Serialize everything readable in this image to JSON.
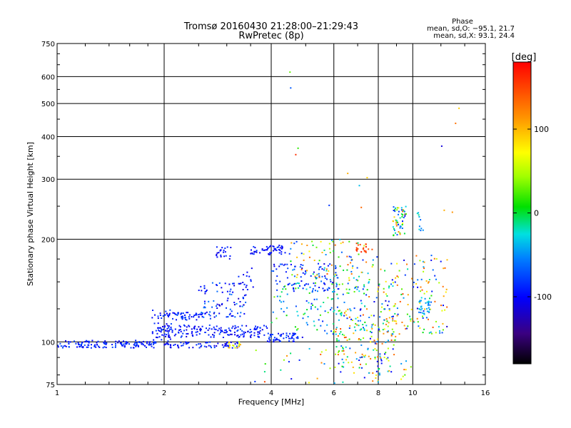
{
  "chart_data": {
    "type": "scatter",
    "title": "Tromsø 20160430 21:28:00–21:29:43",
    "subtitle": "RwPretec (8p)",
    "xlabel": "Frequency [MHz]",
    "ylabel": "Stationary phase Virtual Height [km]",
    "x_scale": "log",
    "y_scale": "log",
    "xlim": [
      1,
      16
    ],
    "ylim": [
      75,
      750
    ],
    "x_ticks": [
      1,
      2,
      4,
      6,
      8,
      10,
      16
    ],
    "y_ticks": [
      75,
      100,
      200,
      300,
      400,
      500,
      600,
      750
    ],
    "grid": true,
    "colorbar": {
      "label": "[deg]",
      "range": [
        -180,
        180
      ],
      "ticks": [
        100,
        0,
        -100
      ]
    },
    "phase_stats": {
      "title": "Phase",
      "line_o": "mean, sd,O: −95.1, 21.7",
      "line_x": "mean, sd,X:  93.1, 24.4"
    },
    "clusters": [
      {
        "x": [
          1.0,
          1.9
        ],
        "y": [
          96,
          101
        ],
        "phase": [
          -110,
          -70
        ],
        "n": 140
      },
      {
        "x": [
          1.85,
          2.1
        ],
        "y": [
          98,
          125
        ],
        "phase": [
          -110,
          -70
        ],
        "n": 40
      },
      {
        "x": [
          1.9,
          3.9
        ],
        "y": [
          103,
          112
        ],
        "phase": [
          -115,
          -75
        ],
        "n": 170
      },
      {
        "x": [
          2.0,
          3.3
        ],
        "y": [
          96,
          100
        ],
        "phase": [
          -115,
          -75
        ],
        "n": 70
      },
      {
        "x": [
          3.0,
          3.3
        ],
        "y": [
          96,
          100
        ],
        "phase": [
          40,
          110
        ],
        "n": 15
      },
      {
        "x": [
          2.0,
          2.7
        ],
        "y": [
          116,
          122
        ],
        "phase": [
          -110,
          -70
        ],
        "n": 55
      },
      {
        "x": [
          2.5,
          3.4
        ],
        "y": [
          118,
          150
        ],
        "phase": [
          -120,
          -50
        ],
        "n": 90
      },
      {
        "x": [
          2.8,
          3.1
        ],
        "y": [
          175,
          190
        ],
        "phase": [
          -115,
          -80
        ],
        "n": 22
      },
      {
        "x": [
          3.5,
          4.4
        ],
        "y": [
          180,
          192
        ],
        "phase": [
          -115,
          -80
        ],
        "n": 55
      },
      {
        "x": [
          3.2,
          3.6
        ],
        "y": [
          142,
          168
        ],
        "phase": [
          -110,
          -80
        ],
        "n": 15
      },
      {
        "x": [
          3.9,
          4.9
        ],
        "y": [
          100,
          106
        ],
        "phase": [
          -110,
          -70
        ],
        "n": 55
      },
      {
        "x": [
          4.0,
          6.2
        ],
        "y": [
          140,
          170
        ],
        "phase": [
          -115,
          -60
        ],
        "n": 90
      },
      {
        "x": [
          4.0,
          7.5
        ],
        "y": [
          105,
          150
        ],
        "phase": [
          -90,
          40
        ],
        "n": 140
      },
      {
        "x": [
          4.5,
          7.5
        ],
        "y": [
          150,
          200
        ],
        "phase": [
          -90,
          140
        ],
        "n": 90
      },
      {
        "x": [
          6.8,
          7.8
        ],
        "y": [
          183,
          195
        ],
        "phase": [
          140,
          165
        ],
        "n": 20
      },
      {
        "x": [
          6.0,
          9.0
        ],
        "y": [
          80,
          125
        ],
        "phase": [
          -120,
          150
        ],
        "n": 150
      },
      {
        "x": [
          7.5,
          12.5
        ],
        "y": [
          105,
          180
        ],
        "phase": [
          -120,
          150
        ],
        "n": 180
      },
      {
        "x": [
          8.8,
          9.6
        ],
        "y": [
          205,
          250
        ],
        "phase": [
          -110,
          140
        ],
        "n": 55
      },
      {
        "x": [
          10.4,
          11.2
        ],
        "y": [
          120,
          135
        ],
        "phase": [
          -60,
          -20
        ],
        "n": 30
      },
      {
        "x": [
          10.2,
          10.8
        ],
        "y": [
          210,
          240
        ],
        "phase": [
          -70,
          0
        ],
        "n": 10
      },
      {
        "x": [
          3.5,
          10.0
        ],
        "y": [
          75,
          98
        ],
        "phase": [
          -120,
          150
        ],
        "n": 55
      },
      {
        "x": [
          4.5,
          14.5
        ],
        "y": [
          230,
          650
        ],
        "phase": [
          -120,
          170
        ],
        "n": 14
      }
    ]
  }
}
